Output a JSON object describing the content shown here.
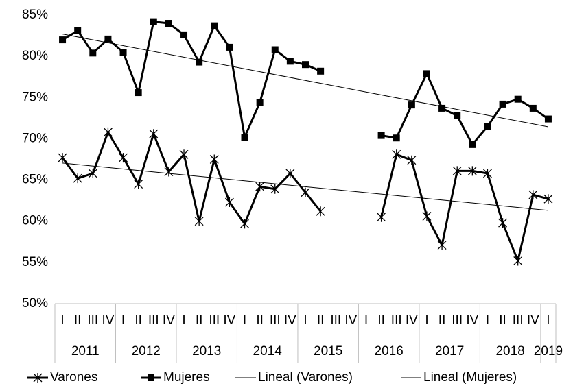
{
  "chart_data": {
    "type": "line",
    "category_groups": [
      {
        "label": "2011",
        "categories": [
          "I",
          "II",
          "III",
          "IV"
        ]
      },
      {
        "label": "2012",
        "categories": [
          "I",
          "II",
          "III",
          "IV"
        ]
      },
      {
        "label": "2013",
        "categories": [
          "I",
          "II",
          "III",
          "IV"
        ]
      },
      {
        "label": "2014",
        "categories": [
          "I",
          "II",
          "III",
          "IV"
        ]
      },
      {
        "label": "2015",
        "categories": [
          "I",
          "II",
          "III",
          "IV"
        ]
      },
      {
        "label": "2016",
        "categories": [
          "I",
          "II",
          "III",
          "IV"
        ]
      },
      {
        "label": "2017",
        "categories": [
          "I",
          "II",
          "III",
          "IV"
        ]
      },
      {
        "label": "2018",
        "categories": [
          "I",
          "II",
          "III",
          "IV"
        ]
      },
      {
        "label": "2019",
        "categories": [
          "I"
        ]
      }
    ],
    "series": [
      {
        "name": "Varones",
        "color": "#000000",
        "marker": "asterisk",
        "values": [
          67.7,
          65.2,
          65.8,
          70.8,
          67.7,
          64.5,
          70.6,
          66.0,
          68.1,
          60.0,
          67.5,
          62.3,
          59.7,
          64.2,
          63.9,
          65.8,
          63.5,
          61.2,
          null,
          null,
          null,
          60.5,
          68.1,
          67.4,
          60.6,
          57.1,
          66.1,
          66.1,
          65.8,
          59.8,
          55.2,
          63.2,
          62.7
        ],
        "trendline": {
          "name": "Lineal (Varones)",
          "type": "linear",
          "color": "#000000"
        }
      },
      {
        "name": "Mujeres",
        "color": "#000000",
        "marker": "square",
        "values": [
          82.0,
          83.1,
          80.4,
          82.1,
          80.5,
          75.6,
          84.2,
          84.0,
          82.6,
          79.3,
          83.7,
          81.1,
          70.2,
          74.4,
          80.8,
          79.4,
          79.0,
          78.2,
          null,
          null,
          null,
          70.4,
          70.1,
          74.1,
          77.9,
          73.7,
          72.8,
          69.3,
          71.5,
          74.2,
          74.8,
          73.7,
          72.4
        ],
        "trendline": {
          "name": "Lineal (Mujeres)",
          "type": "linear",
          "color": "#000000"
        }
      }
    ],
    "ylim": [
      50,
      85
    ],
    "yticks": [
      {
        "value": 50,
        "label": "50%"
      },
      {
        "value": 55,
        "label": "55%"
      },
      {
        "value": 60,
        "label": "60%"
      },
      {
        "value": 65,
        "label": "65%"
      },
      {
        "value": 70,
        "label": "70%"
      },
      {
        "value": 75,
        "label": "75%"
      },
      {
        "value": 80,
        "label": "80%"
      },
      {
        "value": 85,
        "label": "85%"
      }
    ],
    "grid": false,
    "legend": "bottom"
  }
}
